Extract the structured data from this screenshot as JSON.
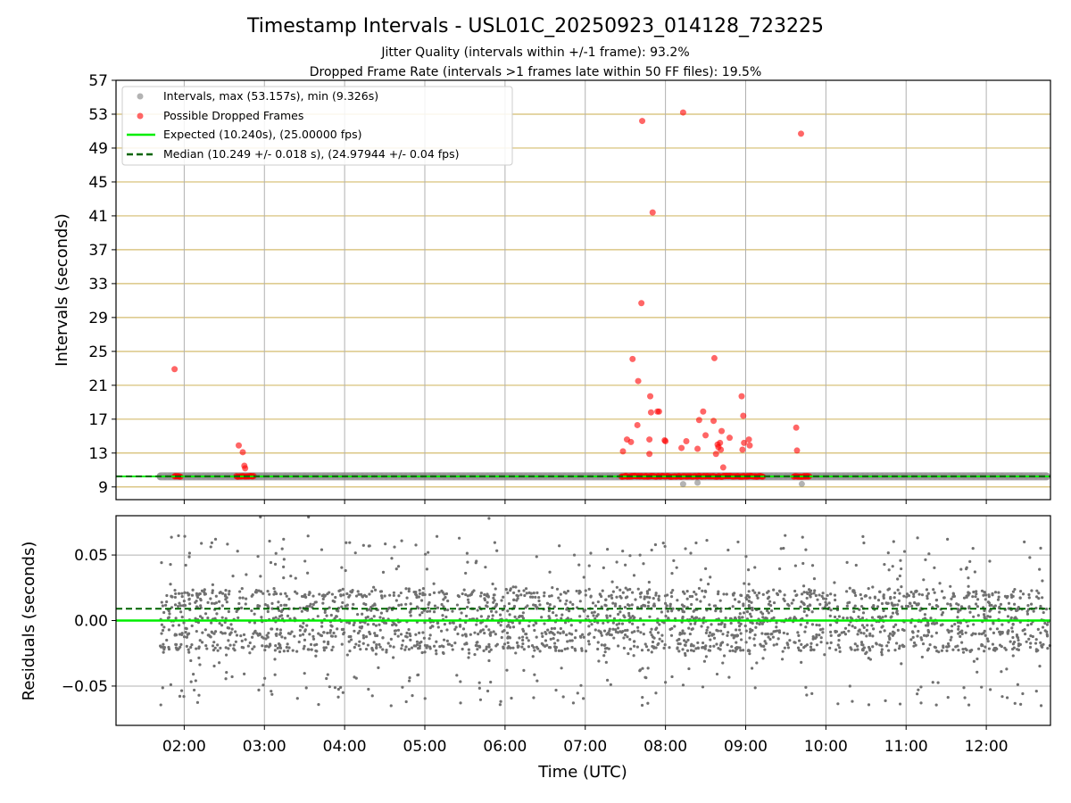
{
  "title": "Timestamp Intervals - USL01C_20250923_014128_723225",
  "subtitle_1": "Jitter Quality (intervals within +/-1 frame): 93.2%",
  "subtitle_2": "Dropped Frame Rate (intervals >1 frames late within 50 FF files): 19.5%",
  "colors": {
    "intervals": "#808080",
    "dropped": "#ff0000",
    "expected": "#00ee00",
    "median": "#006400",
    "hgrid_top": "#d4bc6e",
    "grid": "#b0b0b0",
    "residual_points": "#707070"
  },
  "chart_data": [
    {
      "type": "scatter",
      "name": "intervals",
      "ylabel": "Intervals (seconds)",
      "xlim_hours": [
        1.15,
        12.8
      ],
      "ylim": [
        7.5,
        57
      ],
      "yticks": [
        "9",
        "13",
        "17",
        "21",
        "25",
        "29",
        "33",
        "37",
        "41",
        "45",
        "49",
        "53",
        "57"
      ],
      "ytick_values": [
        9,
        13,
        17,
        21,
        25,
        29,
        33,
        37,
        41,
        45,
        49,
        53,
        57
      ],
      "legend_position": "upper-left",
      "legend": [
        {
          "label": "Intervals, max (53.157s), min (9.326s)",
          "kind": "marker",
          "color": "#808080"
        },
        {
          "label": "Possible Dropped Frames",
          "kind": "marker",
          "color": "#ff0000"
        },
        {
          "label": "Expected (10.240s), (25.00000 fps)",
          "kind": "line",
          "color": "#00ee00"
        },
        {
          "label": "Median (10.249 +/- 0.018 s), (24.97944 +/- 0.04 fps)",
          "kind": "dashed",
          "color": "#006400"
        }
      ],
      "expected": 10.24,
      "median": 10.249,
      "normal_range_hours": [
        1.7,
        12.8
      ],
      "normal_value": 10.25,
      "dropped_bands_hours": [
        [
          1.88,
          1.96
        ],
        [
          2.65,
          2.87
        ],
        [
          7.45,
          9.22
        ],
        [
          9.6,
          9.8
        ]
      ],
      "dropped_band_value": 10.25,
      "min_points": [
        [
          8.22,
          9.33
        ],
        [
          8.4,
          9.5
        ],
        [
          9.7,
          9.35
        ]
      ],
      "dropped_points": [
        [
          1.88,
          22.9
        ],
        [
          2.68,
          13.9
        ],
        [
          2.73,
          13.1
        ],
        [
          2.75,
          11.5
        ],
        [
          2.76,
          11.2
        ],
        [
          7.47,
          13.2
        ],
        [
          7.52,
          14.6
        ],
        [
          7.57,
          14.3
        ],
        [
          7.59,
          24.1
        ],
        [
          7.65,
          16.3
        ],
        [
          7.66,
          21.5
        ],
        [
          7.7,
          30.7
        ],
        [
          7.71,
          52.2
        ],
        [
          7.8,
          14.6
        ],
        [
          7.8,
          12.9
        ],
        [
          7.81,
          19.7
        ],
        [
          7.82,
          17.8
        ],
        [
          7.84,
          41.4
        ],
        [
          7.9,
          17.9
        ],
        [
          7.92,
          17.9
        ],
        [
          7.99,
          14.5
        ],
        [
          8.0,
          14.4
        ],
        [
          8.2,
          13.6
        ],
        [
          8.22,
          53.2
        ],
        [
          8.26,
          14.4
        ],
        [
          8.4,
          13.5
        ],
        [
          8.42,
          16.9
        ],
        [
          8.47,
          17.9
        ],
        [
          8.5,
          15.1
        ],
        [
          8.6,
          16.8
        ],
        [
          8.61,
          24.2
        ],
        [
          8.63,
          12.9
        ],
        [
          8.65,
          14.0
        ],
        [
          8.66,
          13.7
        ],
        [
          8.68,
          14.2
        ],
        [
          8.69,
          13.4
        ],
        [
          8.7,
          15.6
        ],
        [
          8.72,
          11.3
        ],
        [
          8.8,
          14.8
        ],
        [
          8.95,
          19.7
        ],
        [
          8.96,
          13.4
        ],
        [
          8.97,
          17.4
        ],
        [
          8.98,
          14.2
        ],
        [
          9.04,
          14.6
        ],
        [
          9.05,
          13.9
        ],
        [
          9.63,
          16.0
        ],
        [
          9.64,
          13.3
        ],
        [
          9.69,
          50.7
        ]
      ]
    },
    {
      "type": "scatter",
      "name": "residuals",
      "ylabel": "Residuals (seconds)",
      "xlabel": "Time (UTC)",
      "xlim_hours": [
        1.15,
        12.8
      ],
      "ylim": [
        -0.08,
        0.08
      ],
      "yticks": [
        "−0.05",
        "0.00",
        "0.05"
      ],
      "ytick_values": [
        -0.05,
        0.0,
        0.05
      ],
      "expected_residual": 0.0,
      "median_residual": 0.009,
      "residual_levels": [
        -0.02,
        -0.01,
        0.0,
        0.01,
        0.02
      ],
      "residual_spread": 0.007,
      "outliers": [
        [
          2.95,
          0.079
        ],
        [
          3.55,
          0.079
        ],
        [
          2.93,
          -0.053
        ],
        [
          3.95,
          -0.051
        ],
        [
          3.98,
          -0.055
        ],
        [
          5.8,
          0.078
        ],
        [
          6.4,
          -0.046
        ],
        [
          5.82,
          -0.047
        ],
        [
          9.75,
          -0.051
        ],
        [
          10.3,
          -0.05
        ]
      ],
      "point_count": 2600
    }
  ],
  "xticks": [
    "02:00",
    "03:00",
    "04:00",
    "05:00",
    "06:00",
    "07:00",
    "08:00",
    "09:00",
    "10:00",
    "11:00",
    "12:00"
  ],
  "xtick_hours": [
    2,
    3,
    4,
    5,
    6,
    7,
    8,
    9,
    10,
    11,
    12
  ]
}
